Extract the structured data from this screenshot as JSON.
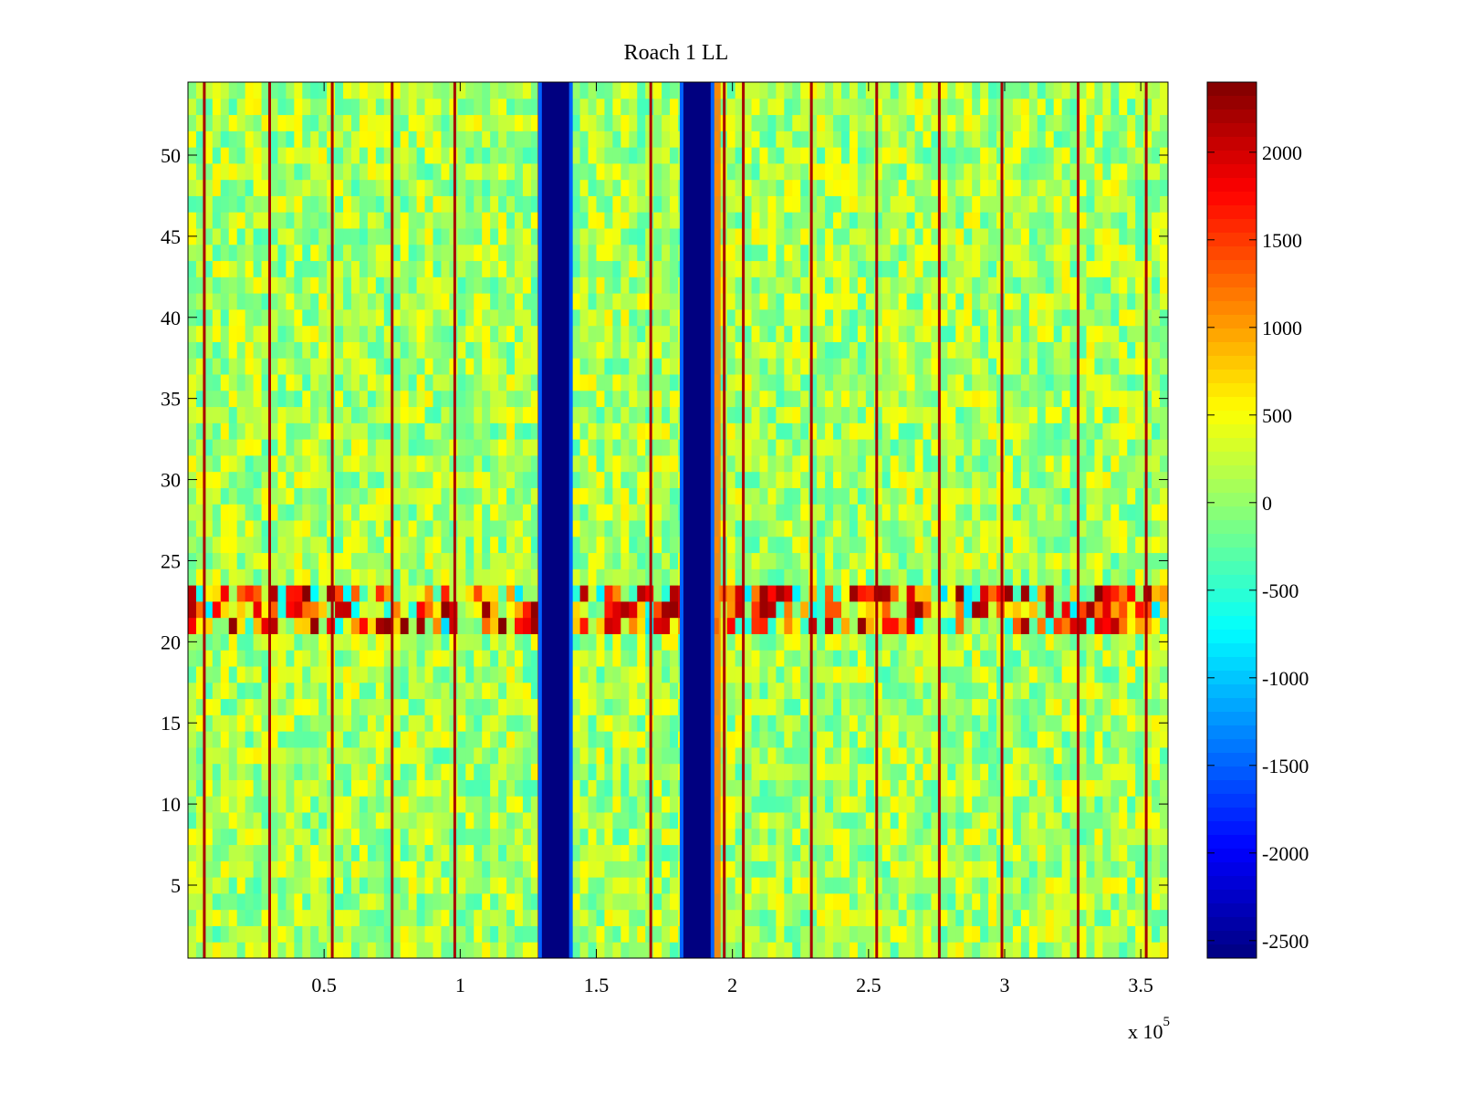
{
  "chart_data": {
    "type": "heatmap",
    "title": "Roach 1 LL",
    "xlabel": "",
    "ylabel": "",
    "x_exponent_label": "x 10",
    "x_exponent_power": "5",
    "xlim": [
      0.0,
      3.6
    ],
    "ylim": [
      0.5,
      54.5
    ],
    "rows": 54,
    "x_ticks": [
      0.5,
      1,
      1.5,
      2,
      2.5,
      3,
      3.5
    ],
    "x_tick_labels": [
      "0.5",
      "1",
      "1.5",
      "2",
      "2.5",
      "3",
      "3.5"
    ],
    "y_ticks": [
      5,
      10,
      15,
      20,
      25,
      30,
      35,
      40,
      45,
      50
    ],
    "y_tick_labels": [
      "5",
      "10",
      "15",
      "20",
      "25",
      "30",
      "35",
      "40",
      "45",
      "50"
    ],
    "colorbar": {
      "colormap": "jet",
      "range": [
        -2600,
        2400
      ],
      "ticks": [
        2000,
        1500,
        1000,
        500,
        0,
        -500,
        -1000,
        -1500,
        -2000,
        -2500
      ],
      "tick_labels": [
        "2000",
        "1500",
        "1000",
        "500",
        "0",
        "-500",
        "-1000",
        "-1500",
        "-2000",
        "-2500"
      ]
    },
    "background_value_range": [
      -400,
      600
    ],
    "bright_columns_x": [
      0.06,
      0.3,
      0.53,
      0.75,
      0.98,
      1.29,
      1.7,
      1.97,
      2.04,
      2.29,
      2.53,
      2.76,
      2.99,
      3.27,
      3.52
    ],
    "dark_columns": [
      {
        "x_start": 1.3,
        "x_end": 1.4,
        "value": -2600
      },
      {
        "x_start": 1.82,
        "x_end": 1.92,
        "value": -2600
      }
    ],
    "noisy_rows": {
      "y_start": 21,
      "y_end": 23,
      "value_range": [
        -900,
        2400
      ]
    },
    "hot_column_near_x": 1.94
  }
}
